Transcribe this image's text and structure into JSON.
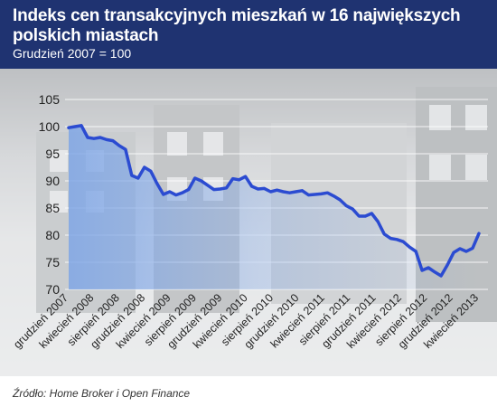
{
  "header": {
    "title": "Indeks cen transakcyjnych mieszkań w 16 największych polskich miastach",
    "subtitle": "Grudzień 2007 = 100"
  },
  "source": "Źródło: Home Broker i Open Finance",
  "colors": {
    "header_bg": "#1f3371",
    "line": "#2b4bd1",
    "area_fill": "#7fa6e6"
  },
  "chart_data": {
    "type": "line",
    "title": "Indeks cen transakcyjnych mieszkań w 16 największych polskich miastach",
    "subtitle": "Grudzień 2007 = 100",
    "xlabel": "",
    "ylabel": "",
    "ylim": [
      70,
      105
    ],
    "yticks": [
      70,
      75,
      80,
      85,
      90,
      95,
      100,
      105
    ],
    "grid": true,
    "legend": "none",
    "x_tick_labels": [
      "grudzień 2007",
      "kwiecień 2008",
      "sierpień 2008",
      "grudzień 2008",
      "kwiecień 2009",
      "sierpień 2009",
      "grudzień 2009",
      "kwiecień 2010",
      "sierpień 2010",
      "grudzień 2010",
      "kwiecień 2011",
      "sierpień 2011",
      "grudzień 2011",
      "kwiecień 2012",
      "sierpień 2012",
      "grudzień 2012",
      "kwiecień 2013"
    ],
    "series": [
      {
        "values": [
          99.8,
          100.0,
          100.2,
          98.0,
          97.8,
          98.0,
          97.6,
          97.4,
          96.5,
          95.8,
          91.0,
          90.5,
          92.5,
          91.8,
          89.5,
          87.5,
          88.0,
          87.4,
          87.8,
          88.4,
          90.5,
          90.0,
          89.2,
          88.4,
          88.5,
          88.7,
          90.4,
          90.2,
          90.8,
          89.0,
          88.5,
          88.6,
          88.0,
          88.3,
          88.0,
          87.8,
          88.0,
          88.2,
          87.4,
          87.5,
          87.6,
          87.8,
          87.2,
          86.5,
          85.4,
          84.8,
          83.5,
          83.5,
          84.0,
          82.5,
          80.2,
          79.4,
          79.2,
          78.8,
          77.8,
          77.0,
          73.5,
          74.0,
          73.2,
          72.5,
          74.5,
          76.8,
          77.5,
          77.0,
          77.6,
          80.3
        ]
      }
    ]
  }
}
